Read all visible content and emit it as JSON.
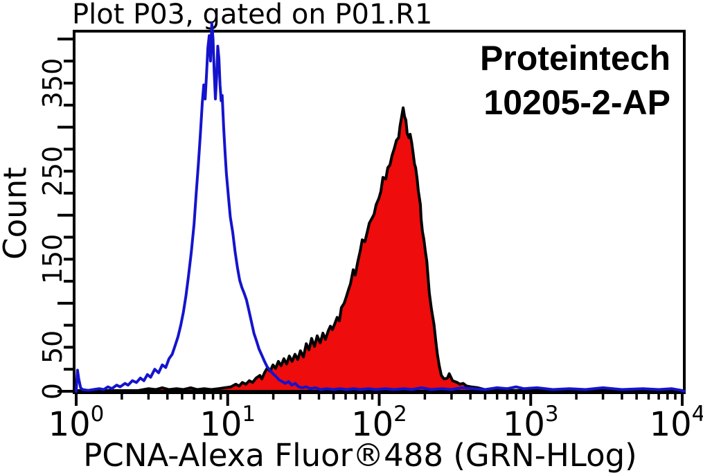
{
  "figure": {
    "title": "Plot P03, gated on P01.R1",
    "brand": "Proteintech",
    "catalog": "10205-2-AP",
    "background": "#ffffff"
  },
  "colors": {
    "control_curve": "#1414cd",
    "stained_fill": "#ee0c0c",
    "stained_outline": "#000000",
    "axis": "#000000"
  },
  "chart_data": {
    "type": "area",
    "subtype": "flow-cytometry-histogram-overlay",
    "title": "Plot P03, gated on P01.R1",
    "xlabel": "PCNA-Alexa Fluor®488 (GRN-HLog)",
    "ylabel": "Count",
    "x_scale": "log",
    "xlim": [
      1,
      10000
    ],
    "ylim": [
      0,
      409
    ],
    "grid": false,
    "legend_position": "none",
    "x_major_ticks": [
      1,
      10,
      100,
      1000,
      10000
    ],
    "x_tick_labels": [
      "10^0",
      "10^1",
      "10^2",
      "10^3",
      "10^4"
    ],
    "y_tick_step": 25,
    "y_labeled_ticks": [
      0,
      50,
      150,
      250,
      350
    ],
    "annotations": [
      "Proteintech",
      "10205-2-AP"
    ],
    "series": [
      {
        "name": "control-open-histogram",
        "color": "#1414cd",
        "fill": "none",
        "peak": {
          "x": 7.85,
          "count": 418
        },
        "points": [
          [
            1.0,
            0
          ],
          [
            1.02,
            24
          ],
          [
            1.04,
            14
          ],
          [
            1.07,
            4
          ],
          [
            1.1,
            2
          ],
          [
            1.2,
            1
          ],
          [
            1.3,
            2
          ],
          [
            1.42,
            3
          ],
          [
            1.52,
            2
          ],
          [
            1.62,
            5
          ],
          [
            1.72,
            3
          ],
          [
            1.85,
            7
          ],
          [
            1.95,
            5
          ],
          [
            2.1,
            9
          ],
          [
            2.2,
            7
          ],
          [
            2.35,
            12
          ],
          [
            2.5,
            10
          ],
          [
            2.65,
            15
          ],
          [
            2.8,
            12
          ],
          [
            2.95,
            19
          ],
          [
            3.1,
            16
          ],
          [
            3.3,
            25
          ],
          [
            3.5,
            21
          ],
          [
            3.7,
            30
          ],
          [
            3.9,
            27
          ],
          [
            4.1,
            37
          ],
          [
            4.3,
            42
          ],
          [
            4.5,
            52
          ],
          [
            4.7,
            62
          ],
          [
            4.9,
            75
          ],
          [
            5.1,
            90
          ],
          [
            5.3,
            108
          ],
          [
            5.5,
            130
          ],
          [
            5.75,
            158
          ],
          [
            6.0,
            190
          ],
          [
            6.2,
            225
          ],
          [
            6.4,
            258
          ],
          [
            6.6,
            292
          ],
          [
            6.8,
            328
          ],
          [
            6.95,
            348
          ],
          [
            7.1,
            332
          ],
          [
            7.25,
            360
          ],
          [
            7.4,
            390
          ],
          [
            7.55,
            404
          ],
          [
            7.7,
            375
          ],
          [
            7.85,
            418
          ],
          [
            8.0,
            400
          ],
          [
            8.15,
            362
          ],
          [
            8.3,
            332
          ],
          [
            8.45,
            356
          ],
          [
            8.6,
            392
          ],
          [
            8.75,
            378
          ],
          [
            8.9,
            348
          ],
          [
            9.05,
            330
          ],
          [
            9.2,
            336
          ],
          [
            9.4,
            300
          ],
          [
            9.6,
            272
          ],
          [
            9.8,
            248
          ],
          [
            10.1,
            222
          ],
          [
            10.4,
            198
          ],
          [
            10.8,
            180
          ],
          [
            11.2,
            158
          ],
          [
            11.6,
            140
          ],
          [
            12.0,
            126
          ],
          [
            12.4,
            118
          ],
          [
            12.8,
            112
          ],
          [
            13.3,
            104
          ],
          [
            13.8,
            92
          ],
          [
            14.3,
            80
          ],
          [
            14.9,
            66
          ],
          [
            15.5,
            57
          ],
          [
            16.1,
            48
          ],
          [
            16.8,
            41
          ],
          [
            17.5,
            34
          ],
          [
            18.2,
            28
          ],
          [
            19.0,
            24
          ],
          [
            19.9,
            20
          ],
          [
            20.8,
            17
          ],
          [
            21.8,
            13
          ],
          [
            22.9,
            11
          ],
          [
            24.0,
            9
          ],
          [
            25.2,
            11
          ],
          [
            26.5,
            7
          ],
          [
            27.9,
            9
          ],
          [
            29.4,
            5
          ],
          [
            31,
            4
          ],
          [
            33,
            5
          ],
          [
            35,
            3
          ],
          [
            38,
            4
          ],
          [
            41,
            2
          ],
          [
            45,
            3
          ],
          [
            50,
            2
          ],
          [
            55,
            3
          ],
          [
            61,
            2
          ],
          [
            68,
            3
          ],
          [
            75,
            2
          ],
          [
            85,
            3
          ],
          [
            95,
            2
          ],
          [
            110,
            3
          ],
          [
            125,
            2
          ],
          [
            145,
            3
          ],
          [
            165,
            2
          ],
          [
            190,
            4
          ],
          [
            220,
            2
          ],
          [
            260,
            3
          ],
          [
            300,
            2
          ],
          [
            350,
            4
          ],
          [
            420,
            3
          ],
          [
            500,
            2
          ],
          [
            600,
            4
          ],
          [
            700,
            3
          ],
          [
            800,
            5
          ],
          [
            900,
            3
          ],
          [
            1100,
            4
          ],
          [
            1400,
            2
          ],
          [
            1800,
            3
          ],
          [
            2300,
            2
          ],
          [
            3000,
            4
          ],
          [
            4000,
            2
          ],
          [
            5500,
            3
          ],
          [
            7000,
            2
          ],
          [
            8500,
            3
          ],
          [
            9900,
            1
          ]
        ]
      },
      {
        "name": "pcna-stained-filled-histogram",
        "color": "#000000",
        "fill": "#ee0c0c",
        "peak": {
          "x": 144,
          "count": 322
        },
        "points": [
          [
            2.6,
            1
          ],
          [
            3.0,
            3
          ],
          [
            3.35,
            2
          ],
          [
            3.7,
            4
          ],
          [
            4.1,
            2
          ],
          [
            4.6,
            3
          ],
          [
            5.1,
            2
          ],
          [
            5.7,
            4
          ],
          [
            6.3,
            2
          ],
          [
            7.0,
            3
          ],
          [
            7.8,
            2
          ],
          [
            8.7,
            3
          ],
          [
            9.6,
            4
          ],
          [
            10.5,
            5
          ],
          [
            11.3,
            8
          ],
          [
            11.9,
            6
          ],
          [
            12.5,
            10
          ],
          [
            13.2,
            8
          ],
          [
            13.9,
            12
          ],
          [
            14.6,
            10
          ],
          [
            15.4,
            15
          ],
          [
            16.3,
            18
          ],
          [
            16.8,
            14
          ],
          [
            17.5,
            21
          ],
          [
            18.2,
            26
          ],
          [
            19.1,
            23
          ],
          [
            19.9,
            30
          ],
          [
            20.7,
            26
          ],
          [
            21.6,
            34
          ],
          [
            22.5,
            29
          ],
          [
            23.5,
            37
          ],
          [
            24.5,
            31
          ],
          [
            25.5,
            40
          ],
          [
            26.6,
            34
          ],
          [
            27.8,
            42
          ],
          [
            29.0,
            36
          ],
          [
            30.2,
            46
          ],
          [
            31.6,
            39
          ],
          [
            33.0,
            54
          ],
          [
            34.4,
            47
          ],
          [
            35.8,
            60
          ],
          [
            37.4,
            51
          ],
          [
            39.0,
            63
          ],
          [
            40.8,
            55
          ],
          [
            42.5,
            66
          ],
          [
            44.2,
            59
          ],
          [
            46.2,
            69
          ],
          [
            47.6,
            74
          ],
          [
            49.1,
            70
          ],
          [
            50.7,
            76
          ],
          [
            52.8,
            84
          ],
          [
            54.6,
            80
          ],
          [
            56.3,
            95
          ],
          [
            58.7,
            100
          ],
          [
            60.6,
            107
          ],
          [
            62.6,
            115
          ],
          [
            64.6,
            122
          ],
          [
            67.4,
            138
          ],
          [
            69.5,
            132
          ],
          [
            72.4,
            148
          ],
          [
            74.9,
            159
          ],
          [
            77.3,
            172
          ],
          [
            80.5,
            170
          ],
          [
            83.2,
            180
          ],
          [
            86.0,
            191
          ],
          [
            89.3,
            196
          ],
          [
            92.5,
            201
          ],
          [
            95.5,
            212
          ],
          [
            99.5,
            219
          ],
          [
            102.6,
            227
          ],
          [
            105.9,
            243
          ],
          [
            110.5,
            241
          ],
          [
            114,
            254
          ],
          [
            117.7,
            257
          ],
          [
            121.6,
            268
          ],
          [
            125.4,
            275
          ],
          [
            129.9,
            285
          ],
          [
            134.4,
            288
          ],
          [
            137.2,
            301
          ],
          [
            140,
            310
          ],
          [
            144,
            322
          ],
          [
            147,
            312
          ],
          [
            150,
            308
          ],
          [
            153,
            293
          ],
          [
            157,
            288
          ],
          [
            160,
            292
          ],
          [
            164,
            282
          ],
          [
            167,
            272
          ],
          [
            171,
            258
          ],
          [
            174,
            254
          ],
          [
            178,
            241
          ],
          [
            181,
            228
          ],
          [
            187,
            212
          ],
          [
            189,
            196
          ],
          [
            193,
            181
          ],
          [
            197,
            173
          ],
          [
            202,
            158
          ],
          [
            206,
            148
          ],
          [
            211,
            126
          ],
          [
            214,
            112
          ],
          [
            221,
            94
          ],
          [
            230,
            76
          ],
          [
            237,
            55
          ],
          [
            242,
            42
          ],
          [
            249,
            29
          ],
          [
            257,
            18
          ],
          [
            268,
            14
          ],
          [
            282,
            15
          ],
          [
            290,
            20
          ],
          [
            305,
            12
          ],
          [
            327,
            10
          ],
          [
            341,
            8
          ],
          [
            358,
            9
          ],
          [
            377,
            6
          ],
          [
            403,
            5
          ],
          [
            448,
            4
          ],
          [
            498,
            2
          ],
          [
            608,
            1
          ],
          [
            840,
            1
          ],
          [
            1400,
            0
          ]
        ]
      }
    ]
  }
}
